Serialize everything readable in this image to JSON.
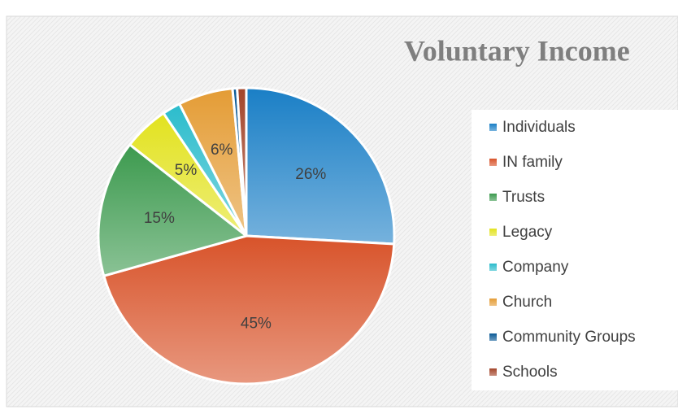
{
  "chart_data": {
    "type": "pie",
    "title": "Voluntary Income",
    "categories": [
      "Individuals",
      "IN family",
      "Trusts",
      "Legacy",
      "Company",
      "Church",
      "Community Groups",
      "Schools"
    ],
    "values": [
      26,
      45,
      15,
      5,
      2,
      6,
      0.5,
      1
    ],
    "value_labels": [
      "26%",
      "45%",
      "15%",
      "5%",
      null,
      "6%",
      null,
      null
    ],
    "colors": [
      "#1a7fc6",
      "#d8532a",
      "#3c9a4e",
      "#e2e21e",
      "#2bbccc",
      "#e49c35",
      "#0b5a96",
      "#a3452a"
    ]
  }
}
